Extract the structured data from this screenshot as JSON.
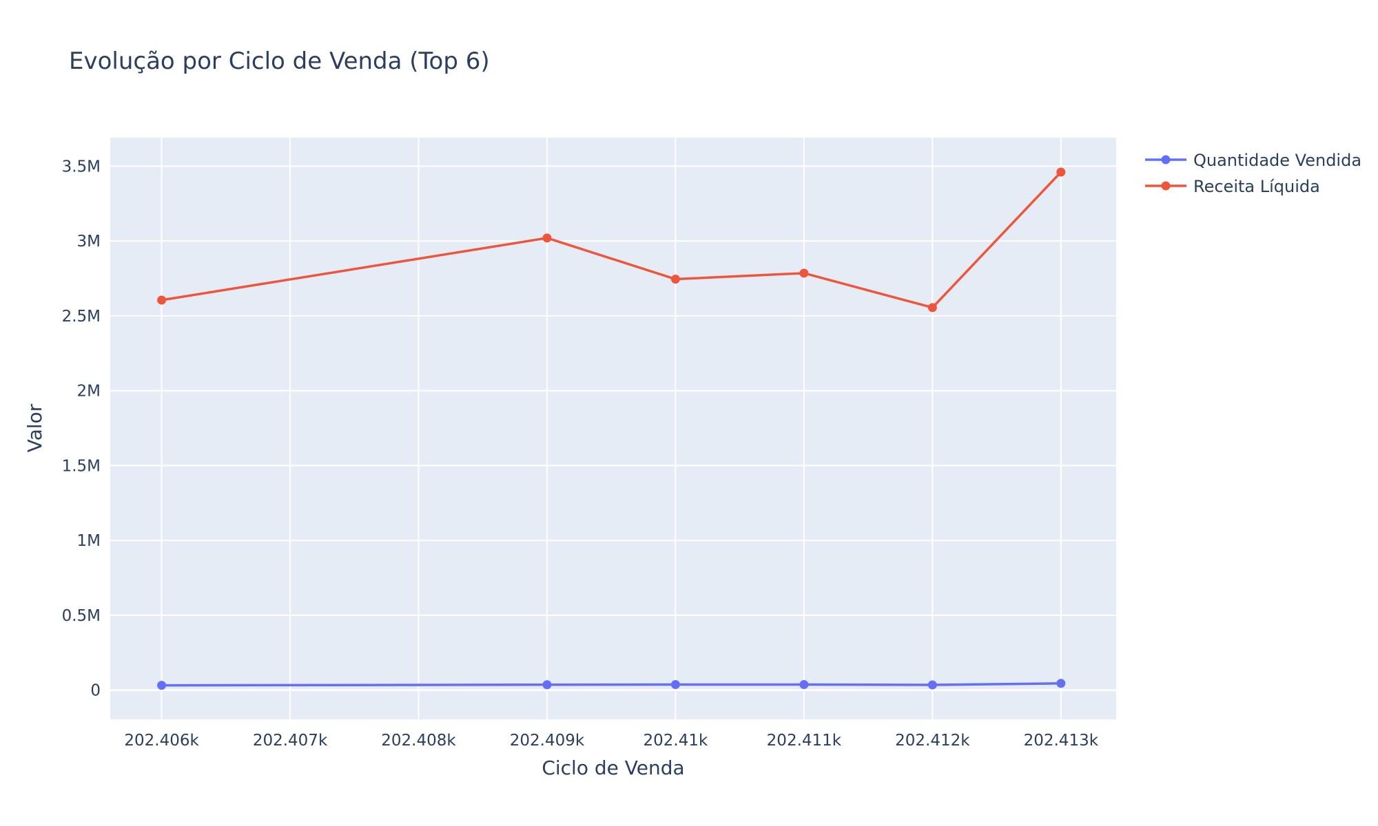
{
  "chart_data": {
    "type": "line",
    "title": "Evolução por Ciclo de Venda (Top 6)",
    "xlabel": "Ciclo de Venda",
    "ylabel": "Valor",
    "x": [
      202406,
      202409,
      202410,
      202411,
      202412,
      202413
    ],
    "xlim": [
      202405.6,
      202413.43
    ],
    "ylim": [
      -195000,
      3690000
    ],
    "x_ticks": [
      202406,
      202407,
      202408,
      202409,
      202410,
      202411,
      202412,
      202413
    ],
    "x_tick_labels": [
      "202.406k",
      "202.407k",
      "202.408k",
      "202.409k",
      "202.41k",
      "202.411k",
      "202.412k",
      "202.413k"
    ],
    "y_ticks": [
      0,
      500000,
      1000000,
      1500000,
      2000000,
      2500000,
      3000000,
      3500000
    ],
    "y_tick_labels": [
      "0",
      "0.5M",
      "1M",
      "1.5M",
      "2M",
      "2.5M",
      "3M",
      "3.5M"
    ],
    "grid": true,
    "legend_position": "top-right, outside plot",
    "background": "#e5ecf6",
    "series": [
      {
        "name": "Quantidade Vendida",
        "color": "#636efa",
        "values": [
          32000,
          36000,
          37000,
          37000,
          35000,
          45000
        ]
      },
      {
        "name": "Receita Líquida",
        "color": "#ef553b",
        "values": [
          2605000,
          3020000,
          2745000,
          2785000,
          2555000,
          3460000
        ]
      }
    ]
  }
}
